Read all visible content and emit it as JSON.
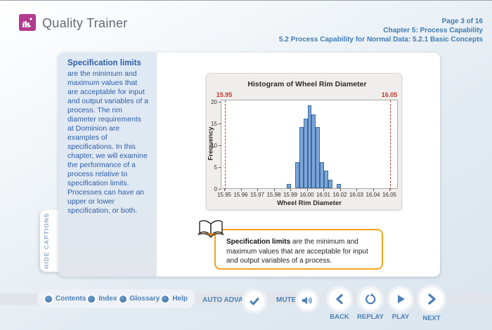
{
  "header": {
    "app_title": "Quality Trainer",
    "page_indicator": "Page 3 of 16",
    "chapter": "Chapter 5: Process Capability",
    "section": "5.2 Process Capability for Normal Data: 5.2.1 Basic Concepts"
  },
  "sidebar": {
    "title": "Specification limits",
    "body": "are the minimum and maximum values that are acceptable for input and output variables of a process. The rim diameter requirements at Dominion are examples of specifications. In this chapter, we will examine the performance of a process relative to specification limits. Processes can have an upper or lower specification, or both.",
    "hide_captions_label": "HIDE CAPTIONS"
  },
  "caption_box": {
    "bold_text": "Specification limits",
    "text": " are the minimum and maximum values that are acceptable for input and output variables of a process.",
    "icon": "open-book-icon",
    "border_color": "#F5A31C"
  },
  "chart_data": {
    "type": "bar",
    "subtype": "histogram",
    "title": "Histogram of Wheel Rim Diameter",
    "xlabel": "Wheel Rim Diameter",
    "ylabel": "Frequency",
    "xlim": [
      15.95,
      16.05
    ],
    "ylim": [
      0,
      20
    ],
    "xtick_labels": [
      "15.95",
      "15.96",
      "15.97",
      "15.98",
      "15.99",
      "16.00",
      "16.01",
      "16.02",
      "16.03",
      "16.04",
      "16.05"
    ],
    "yticks": [
      0,
      5,
      10,
      15,
      20
    ],
    "bin_width": 0.0025,
    "bins": [
      {
        "x": 15.9875,
        "f": 1
      },
      {
        "x": 15.9925,
        "f": 6
      },
      {
        "x": 15.995,
        "f": 14
      },
      {
        "x": 15.9975,
        "f": 16
      },
      {
        "x": 16.0,
        "f": 19
      },
      {
        "x": 16.0025,
        "f": 17
      },
      {
        "x": 16.005,
        "f": 14
      },
      {
        "x": 16.0075,
        "f": 6
      },
      {
        "x": 16.01,
        "f": 4
      },
      {
        "x": 16.0125,
        "f": 2
      },
      {
        "x": 16.0175,
        "f": 1
      }
    ],
    "spec_limits": {
      "lower": {
        "value": 15.95,
        "label": "15.95"
      },
      "upper": {
        "value": 16.05,
        "label": "16.05"
      },
      "color": "#C0392B",
      "style": "dashed"
    },
    "bar_fill": "#7CA6D8",
    "bar_border": "#3F6A9E",
    "legend": null,
    "grid": false
  },
  "footer": {
    "menu": [
      {
        "label": "Contents"
      },
      {
        "label": "Index"
      },
      {
        "label": "Glossary"
      },
      {
        "label": "Help"
      }
    ],
    "auto_advance_label": "AUTO ADVANCE",
    "mute_label": "MUTE",
    "transport": [
      {
        "label": "BACK",
        "icon": "chevron-left-icon"
      },
      {
        "label": "REPLAY",
        "icon": "replay-icon"
      },
      {
        "label": "PLAY",
        "icon": "play-icon"
      },
      {
        "label": "NEXT",
        "icon": "chevron-right-icon"
      }
    ]
  },
  "colors": {
    "accent_blue": "#4D80B6",
    "logo_magenta": "#B23A8C",
    "caption_orange": "#F5A31C",
    "spec_red": "#C0392B",
    "bar_blue": "#7CA6D8",
    "sidebar_text_blue": "#2C5EA8"
  }
}
